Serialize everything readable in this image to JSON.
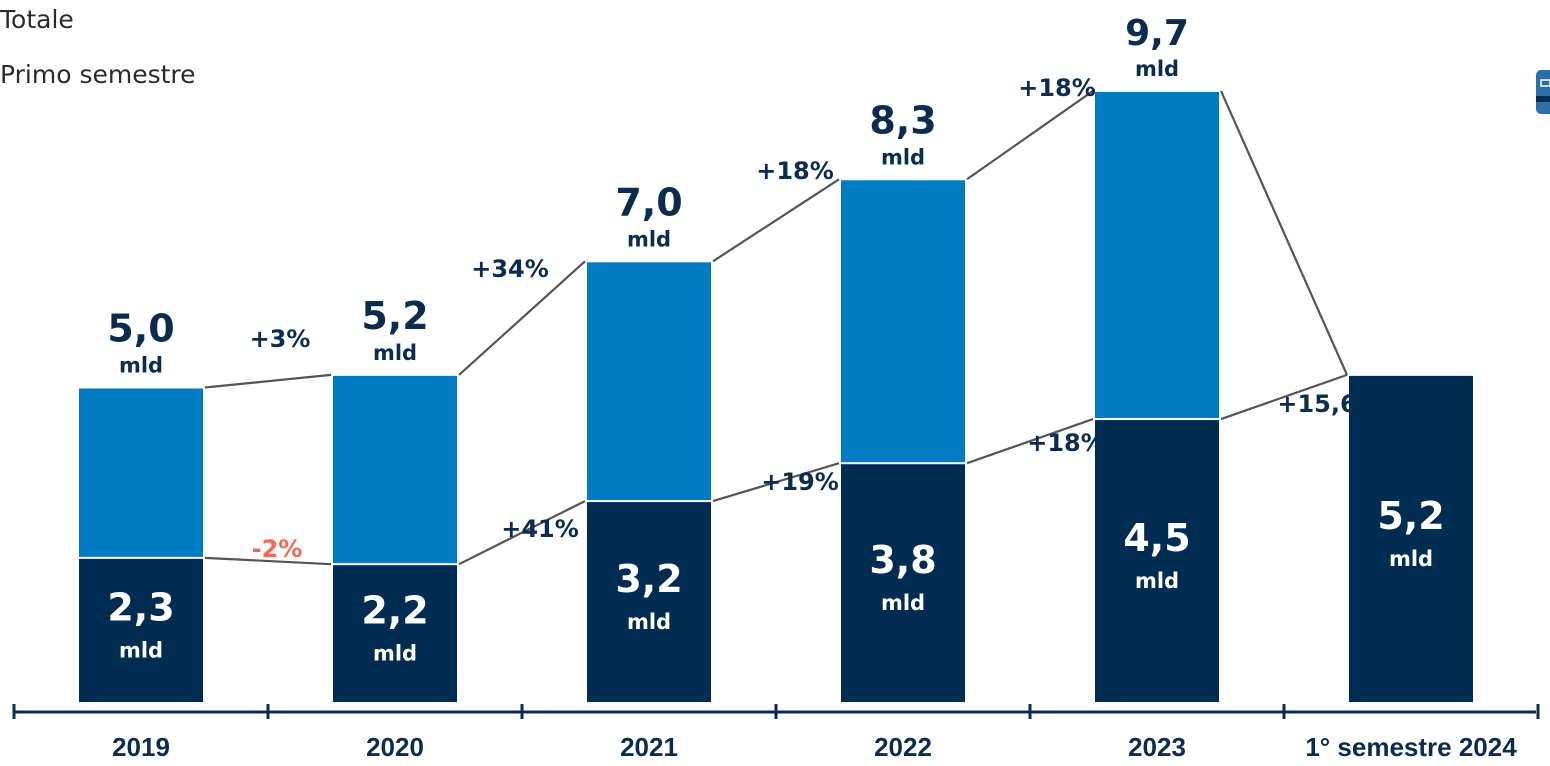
{
  "legend": {
    "total_label": "Totale",
    "first_half_label": "Primo semestre"
  },
  "colors": {
    "total_bar": "#007bc1",
    "first_half_bar": "#002c52",
    "text_dark": "#0c2c4e",
    "negative": "#f26a55",
    "connector": "#555555",
    "icon": "#2f6fa8"
  },
  "corner_icon": "window-icon",
  "chart_data": {
    "type": "bar",
    "stacking": "overlay",
    "categories": [
      "2019",
      "2020",
      "2021",
      "2022",
      "2023",
      "1° semestre 2024"
    ],
    "series": [
      {
        "name": "Totale",
        "values": [
          5.0,
          5.2,
          7.0,
          8.3,
          9.7,
          null
        ],
        "labels": [
          "5,0",
          "5,2",
          "7,0",
          "8,3",
          "9,7",
          ""
        ]
      },
      {
        "name": "Primo semestre",
        "values": [
          2.3,
          2.2,
          3.2,
          3.8,
          4.5,
          5.2
        ],
        "labels": [
          "2,3",
          "2,2",
          "3,2",
          "3,8",
          "4,5",
          "5,2"
        ]
      }
    ],
    "unit": "mld",
    "growth_total": [
      "+3%",
      "+34%",
      "+18%",
      "+18%"
    ],
    "growth_first_half": [
      "-2%",
      "+41%",
      "+19%",
      "+18%",
      "+15,6"
    ],
    "ylim": [
      0,
      10
    ],
    "grid": false,
    "legend_position": "top-left"
  }
}
